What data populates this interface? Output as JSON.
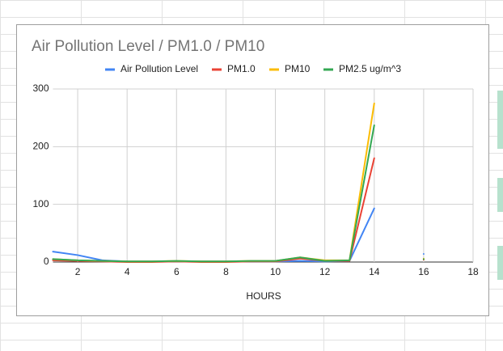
{
  "chart_data": {
    "type": "line",
    "title": "Air Pollution Level / PM1.0 / PM10",
    "x_label": "HOURS",
    "x": [
      1,
      2,
      3,
      4,
      5,
      6,
      7,
      8,
      9,
      10,
      11,
      12,
      13,
      14,
      15,
      16
    ],
    "series": [
      {
        "name": "Air Pollution Level",
        "color": "#4285f4",
        "values": [
          18,
          12,
          3,
          1,
          1,
          1,
          1,
          1,
          1,
          1,
          2,
          1,
          2,
          93,
          null,
          14
        ]
      },
      {
        "name": "PM1.0",
        "color": "#ea4335",
        "values": [
          3,
          2,
          1,
          0,
          0,
          1,
          0,
          0,
          1,
          1,
          6,
          2,
          2,
          180,
          null,
          4
        ]
      },
      {
        "name": "PM10",
        "color": "#fbbc04",
        "values": [
          5,
          3,
          2,
          1,
          1,
          2,
          1,
          1,
          2,
          2,
          8,
          3,
          3,
          275,
          null,
          6
        ]
      },
      {
        "name": "PM2.5 ug/m^3",
        "color": "#34a853",
        "values": [
          5,
          3,
          2,
          1,
          1,
          2,
          1,
          1,
          2,
          2,
          8,
          2,
          3,
          237,
          null,
          5
        ]
      }
    ],
    "xlim": [
      1,
      18
    ],
    "xticks": [
      2,
      4,
      6,
      8,
      10,
      12,
      14,
      16,
      18
    ],
    "ylim": [
      0,
      300
    ],
    "yticks": [
      0,
      100,
      200,
      300
    ],
    "grid": true,
    "legend": "top"
  }
}
